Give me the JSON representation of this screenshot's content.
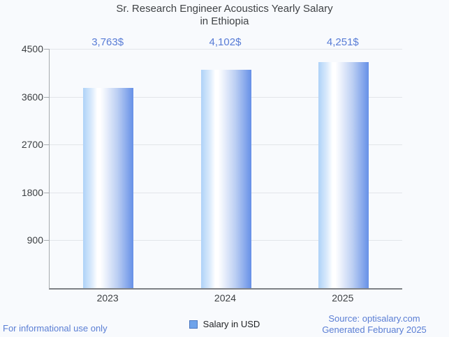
{
  "title": {
    "line1": "Sr. Research Engineer Acoustics Yearly Salary",
    "line2": "in Ethiopia"
  },
  "chart_data": {
    "type": "bar",
    "categories": [
      "2023",
      "2024",
      "2025"
    ],
    "values": [
      3763,
      4102,
      4251
    ],
    "value_labels": [
      "3,763$",
      "4,102$",
      "4,251$"
    ],
    "title": "Sr. Research Engineer Acoustics Yearly Salary in Ethiopia",
    "xlabel": "",
    "ylabel": "",
    "ylim": [
      0,
      4500
    ],
    "yticks": [
      900,
      1800,
      2700,
      3600,
      4500
    ],
    "grid": true,
    "legend": {
      "label": "Salary in USD",
      "position": "bottom"
    }
  },
  "colors": {
    "background": "#f8fafd",
    "bar_gradient_left": "#aed2f8",
    "bar_gradient_highlight": "#ffffff",
    "bar_gradient_right": "#6690e7",
    "value_label_blue": "#587cd6",
    "footer_blue": "#5a7ed4",
    "legend_swatch": "#6fa3ea",
    "axis_text": "#3d4043",
    "gridline": "#e2e5e9"
  },
  "footer": {
    "left": "For informational use only",
    "source": "Source: optisalary.com",
    "generated": "Generated February 2025"
  }
}
